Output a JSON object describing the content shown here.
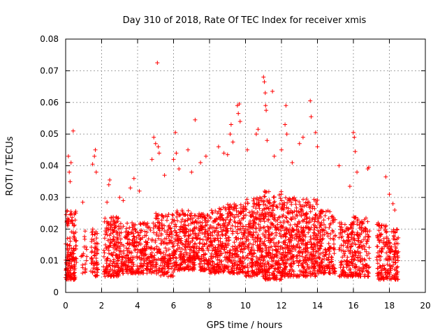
{
  "chart_data": {
    "type": "scatter",
    "title": "Day 310 of 2018, Rate Of TEC Index for receiver xmis",
    "xlabel": "GPS time / hours",
    "ylabel": "ROTI / TECUs",
    "xlim": [
      0,
      20
    ],
    "ylim": [
      0,
      0.08
    ],
    "x_ticks": [
      0,
      2,
      4,
      6,
      8,
      10,
      12,
      14,
      16,
      18,
      20
    ],
    "x_tick_labels": [
      "0",
      "2",
      "4",
      "6",
      "8",
      "10",
      "12",
      "14",
      "16",
      "18",
      "20"
    ],
    "y_ticks": [
      0,
      0.01,
      0.02,
      0.03,
      0.04,
      0.05,
      0.06,
      0.07,
      0.08
    ],
    "y_tick_labels": [
      "0",
      "0.01",
      "0.02",
      "0.03",
      "0.04",
      "0.05",
      "0.06",
      "0.07",
      "0.08"
    ],
    "grid": true,
    "marker": "+",
    "marker_color": "#ff0000",
    "series": [
      {
        "name": "ROTI",
        "points_note": "dense scatter; representative points estimated from image",
        "clusters": [
          {
            "x_range": [
              0.0,
              0.6
            ],
            "y_range": [
              0.004,
              0.026
            ],
            "density": 160
          },
          {
            "x_range": [
              0.8,
              1.2
            ],
            "y_range": [
              0.006,
              0.02
            ],
            "density": 20
          },
          {
            "x_range": [
              1.4,
              1.8
            ],
            "y_range": [
              0.005,
              0.02
            ],
            "density": 60
          },
          {
            "x_range": [
              2.1,
              3.0
            ],
            "y_range": [
              0.005,
              0.024
            ],
            "density": 180
          },
          {
            "x_range": [
              3.0,
              4.0
            ],
            "y_range": [
              0.006,
              0.022
            ],
            "density": 160
          },
          {
            "x_range": [
              4.0,
              5.0
            ],
            "y_range": [
              0.006,
              0.022
            ],
            "density": 160
          },
          {
            "x_range": [
              5.0,
              6.0
            ],
            "y_range": [
              0.005,
              0.025
            ],
            "density": 180
          },
          {
            "x_range": [
              6.0,
              7.0
            ],
            "y_range": [
              0.007,
              0.026
            ],
            "density": 200
          },
          {
            "x_range": [
              7.0,
              8.0
            ],
            "y_range": [
              0.007,
              0.025
            ],
            "density": 200
          },
          {
            "x_range": [
              8.0,
              9.0
            ],
            "y_range": [
              0.006,
              0.027
            ],
            "density": 220
          },
          {
            "x_range": [
              9.0,
              10.0
            ],
            "y_range": [
              0.006,
              0.028
            ],
            "density": 220
          },
          {
            "x_range": [
              10.0,
              11.0
            ],
            "y_range": [
              0.005,
              0.03
            ],
            "density": 240
          },
          {
            "x_range": [
              11.0,
              12.0
            ],
            "y_range": [
              0.004,
              0.032
            ],
            "density": 260
          },
          {
            "x_range": [
              12.0,
              13.0
            ],
            "y_range": [
              0.005,
              0.03
            ],
            "density": 240
          },
          {
            "x_range": [
              13.0,
              14.0
            ],
            "y_range": [
              0.005,
              0.03
            ],
            "density": 230
          },
          {
            "x_range": [
              14.0,
              15.0
            ],
            "y_range": [
              0.006,
              0.026
            ],
            "density": 180
          },
          {
            "x_range": [
              15.2,
              16.0
            ],
            "y_range": [
              0.005,
              0.022
            ],
            "density": 140
          },
          {
            "x_range": [
              16.0,
              16.9
            ],
            "y_range": [
              0.005,
              0.024
            ],
            "density": 150
          },
          {
            "x_range": [
              17.3,
              18.0
            ],
            "y_range": [
              0.004,
              0.022
            ],
            "density": 120
          },
          {
            "x_range": [
              18.0,
              18.5
            ],
            "y_range": [
              0.004,
              0.02
            ],
            "density": 90
          }
        ],
        "outliers": [
          [
            0.15,
            0.043
          ],
          [
            0.2,
            0.038
          ],
          [
            0.25,
            0.035
          ],
          [
            0.3,
            0.041
          ],
          [
            0.42,
            0.051
          ],
          [
            0.95,
            0.0285
          ],
          [
            1.5,
            0.0405
          ],
          [
            1.6,
            0.043
          ],
          [
            1.65,
            0.045
          ],
          [
            1.7,
            0.038
          ],
          [
            2.3,
            0.0285
          ],
          [
            2.4,
            0.034
          ],
          [
            2.45,
            0.0355
          ],
          [
            3.0,
            0.03
          ],
          [
            3.2,
            0.029
          ],
          [
            3.6,
            0.033
          ],
          [
            3.8,
            0.036
          ],
          [
            4.1,
            0.032
          ],
          [
            4.8,
            0.042
          ],
          [
            4.9,
            0.049
          ],
          [
            5.0,
            0.047
          ],
          [
            5.1,
            0.0725
          ],
          [
            5.15,
            0.046
          ],
          [
            5.2,
            0.044
          ],
          [
            5.5,
            0.037
          ],
          [
            6.0,
            0.042
          ],
          [
            6.1,
            0.0505
          ],
          [
            6.15,
            0.044
          ],
          [
            6.3,
            0.039
          ],
          [
            6.8,
            0.045
          ],
          [
            7.0,
            0.038
          ],
          [
            7.2,
            0.0545
          ],
          [
            7.5,
            0.041
          ],
          [
            7.8,
            0.043
          ],
          [
            8.5,
            0.046
          ],
          [
            8.8,
            0.044
          ],
          [
            9.0,
            0.0435
          ],
          [
            9.15,
            0.05
          ],
          [
            9.2,
            0.053
          ],
          [
            9.3,
            0.0475
          ],
          [
            9.55,
            0.059
          ],
          [
            9.6,
            0.0565
          ],
          [
            9.65,
            0.0595
          ],
          [
            9.7,
            0.054
          ],
          [
            10.1,
            0.045
          ],
          [
            10.6,
            0.05
          ],
          [
            10.7,
            0.0515
          ],
          [
            11.0,
            0.068
          ],
          [
            11.05,
            0.0665
          ],
          [
            11.1,
            0.063
          ],
          [
            11.12,
            0.059
          ],
          [
            11.15,
            0.0575
          ],
          [
            11.2,
            0.048
          ],
          [
            11.5,
            0.0635
          ],
          [
            11.6,
            0.043
          ],
          [
            12.0,
            0.045
          ],
          [
            12.2,
            0.053
          ],
          [
            12.25,
            0.059
          ],
          [
            12.3,
            0.05
          ],
          [
            12.6,
            0.041
          ],
          [
            13.0,
            0.047
          ],
          [
            13.2,
            0.049
          ],
          [
            13.6,
            0.0605
          ],
          [
            13.65,
            0.0555
          ],
          [
            13.9,
            0.0505
          ],
          [
            14.0,
            0.046
          ],
          [
            15.2,
            0.04
          ],
          [
            15.8,
            0.0335
          ],
          [
            16.0,
            0.0505
          ],
          [
            16.05,
            0.049
          ],
          [
            16.1,
            0.0445
          ],
          [
            16.2,
            0.038
          ],
          [
            16.8,
            0.039
          ],
          [
            16.85,
            0.0395
          ],
          [
            17.8,
            0.0365
          ],
          [
            18.0,
            0.031
          ],
          [
            18.2,
            0.028
          ],
          [
            18.3,
            0.026
          ]
        ]
      }
    ]
  }
}
